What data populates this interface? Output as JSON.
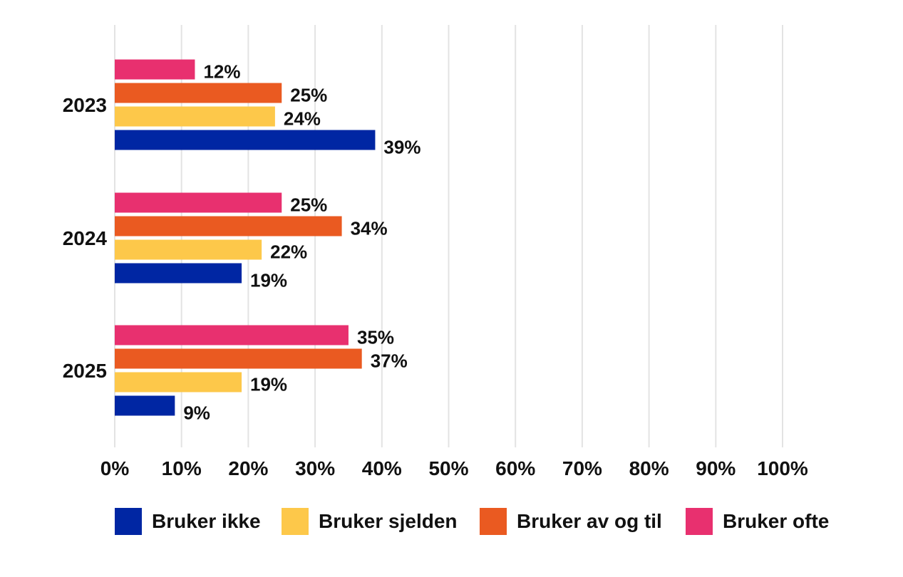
{
  "chart_data": {
    "type": "bar",
    "orientation": "horizontal",
    "title": "",
    "xlabel": "",
    "ylabel": "",
    "categories": [
      "2023",
      "2024",
      "2025"
    ],
    "series": [
      {
        "name": "Bruker ikke",
        "color": "#0026a3",
        "values": [
          39,
          19,
          9
        ]
      },
      {
        "name": "Bruker sjelden",
        "color": "#fdc84a",
        "values": [
          24,
          22,
          19
        ]
      },
      {
        "name": "Bruker av og til",
        "color": "#ea5a21",
        "values": [
          25,
          34,
          37
        ]
      },
      {
        "name": "Bruker ofte",
        "color": "#e8306f",
        "values": [
          12,
          25,
          35
        ]
      }
    ],
    "xlim": [
      0,
      100
    ],
    "xticks": [
      "0%",
      "10%",
      "20%",
      "30%",
      "40%",
      "50%",
      "60%",
      "70%",
      "80%",
      "90%",
      "100%"
    ],
    "value_suffix": "%",
    "grid": "vertical",
    "legend": "bottom"
  }
}
